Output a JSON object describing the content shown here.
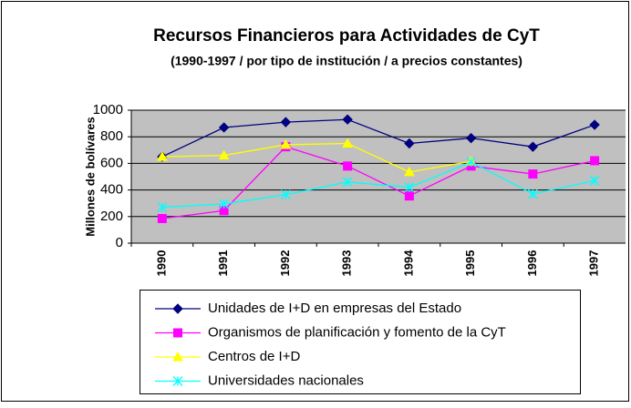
{
  "chart_data": {
    "type": "line",
    "title": "Recursos Financieros para Actividades de CyT",
    "subtitle": "(1990-1997 / por tipo de institución / a precios constantes)",
    "y_label": "Millones de bolívares",
    "categories": [
      "1990",
      "1991",
      "1992",
      "1993",
      "1994",
      "1995",
      "1996",
      "1997"
    ],
    "series": [
      {
        "name": "Unidades de I+D en empresas del Estado",
        "color": "#000080",
        "marker": "diamond",
        "values": [
          650,
          870,
          910,
          930,
          750,
          790,
          725,
          890
        ]
      },
      {
        "name": "Organismos de planificación y fomento de la CyT",
        "color": "#ff00ff",
        "marker": "square",
        "values": [
          185,
          245,
          725,
          580,
          355,
          580,
          520,
          620
        ]
      },
      {
        "name": "Centros de I+D",
        "color": "#ffff00",
        "marker": "triangle",
        "values": [
          650,
          660,
          740,
          750,
          535,
          615,
          null,
          null
        ]
      },
      {
        "name": "Universidades nacionales",
        "color": "#00ffff",
        "marker": "x",
        "values": [
          270,
          295,
          365,
          460,
          420,
          610,
          370,
          470
        ]
      }
    ],
    "ylim": [
      0,
      1000
    ],
    "yticks": [
      0,
      200,
      400,
      600,
      800,
      1000
    ],
    "grid": true,
    "legend": "bottom"
  }
}
